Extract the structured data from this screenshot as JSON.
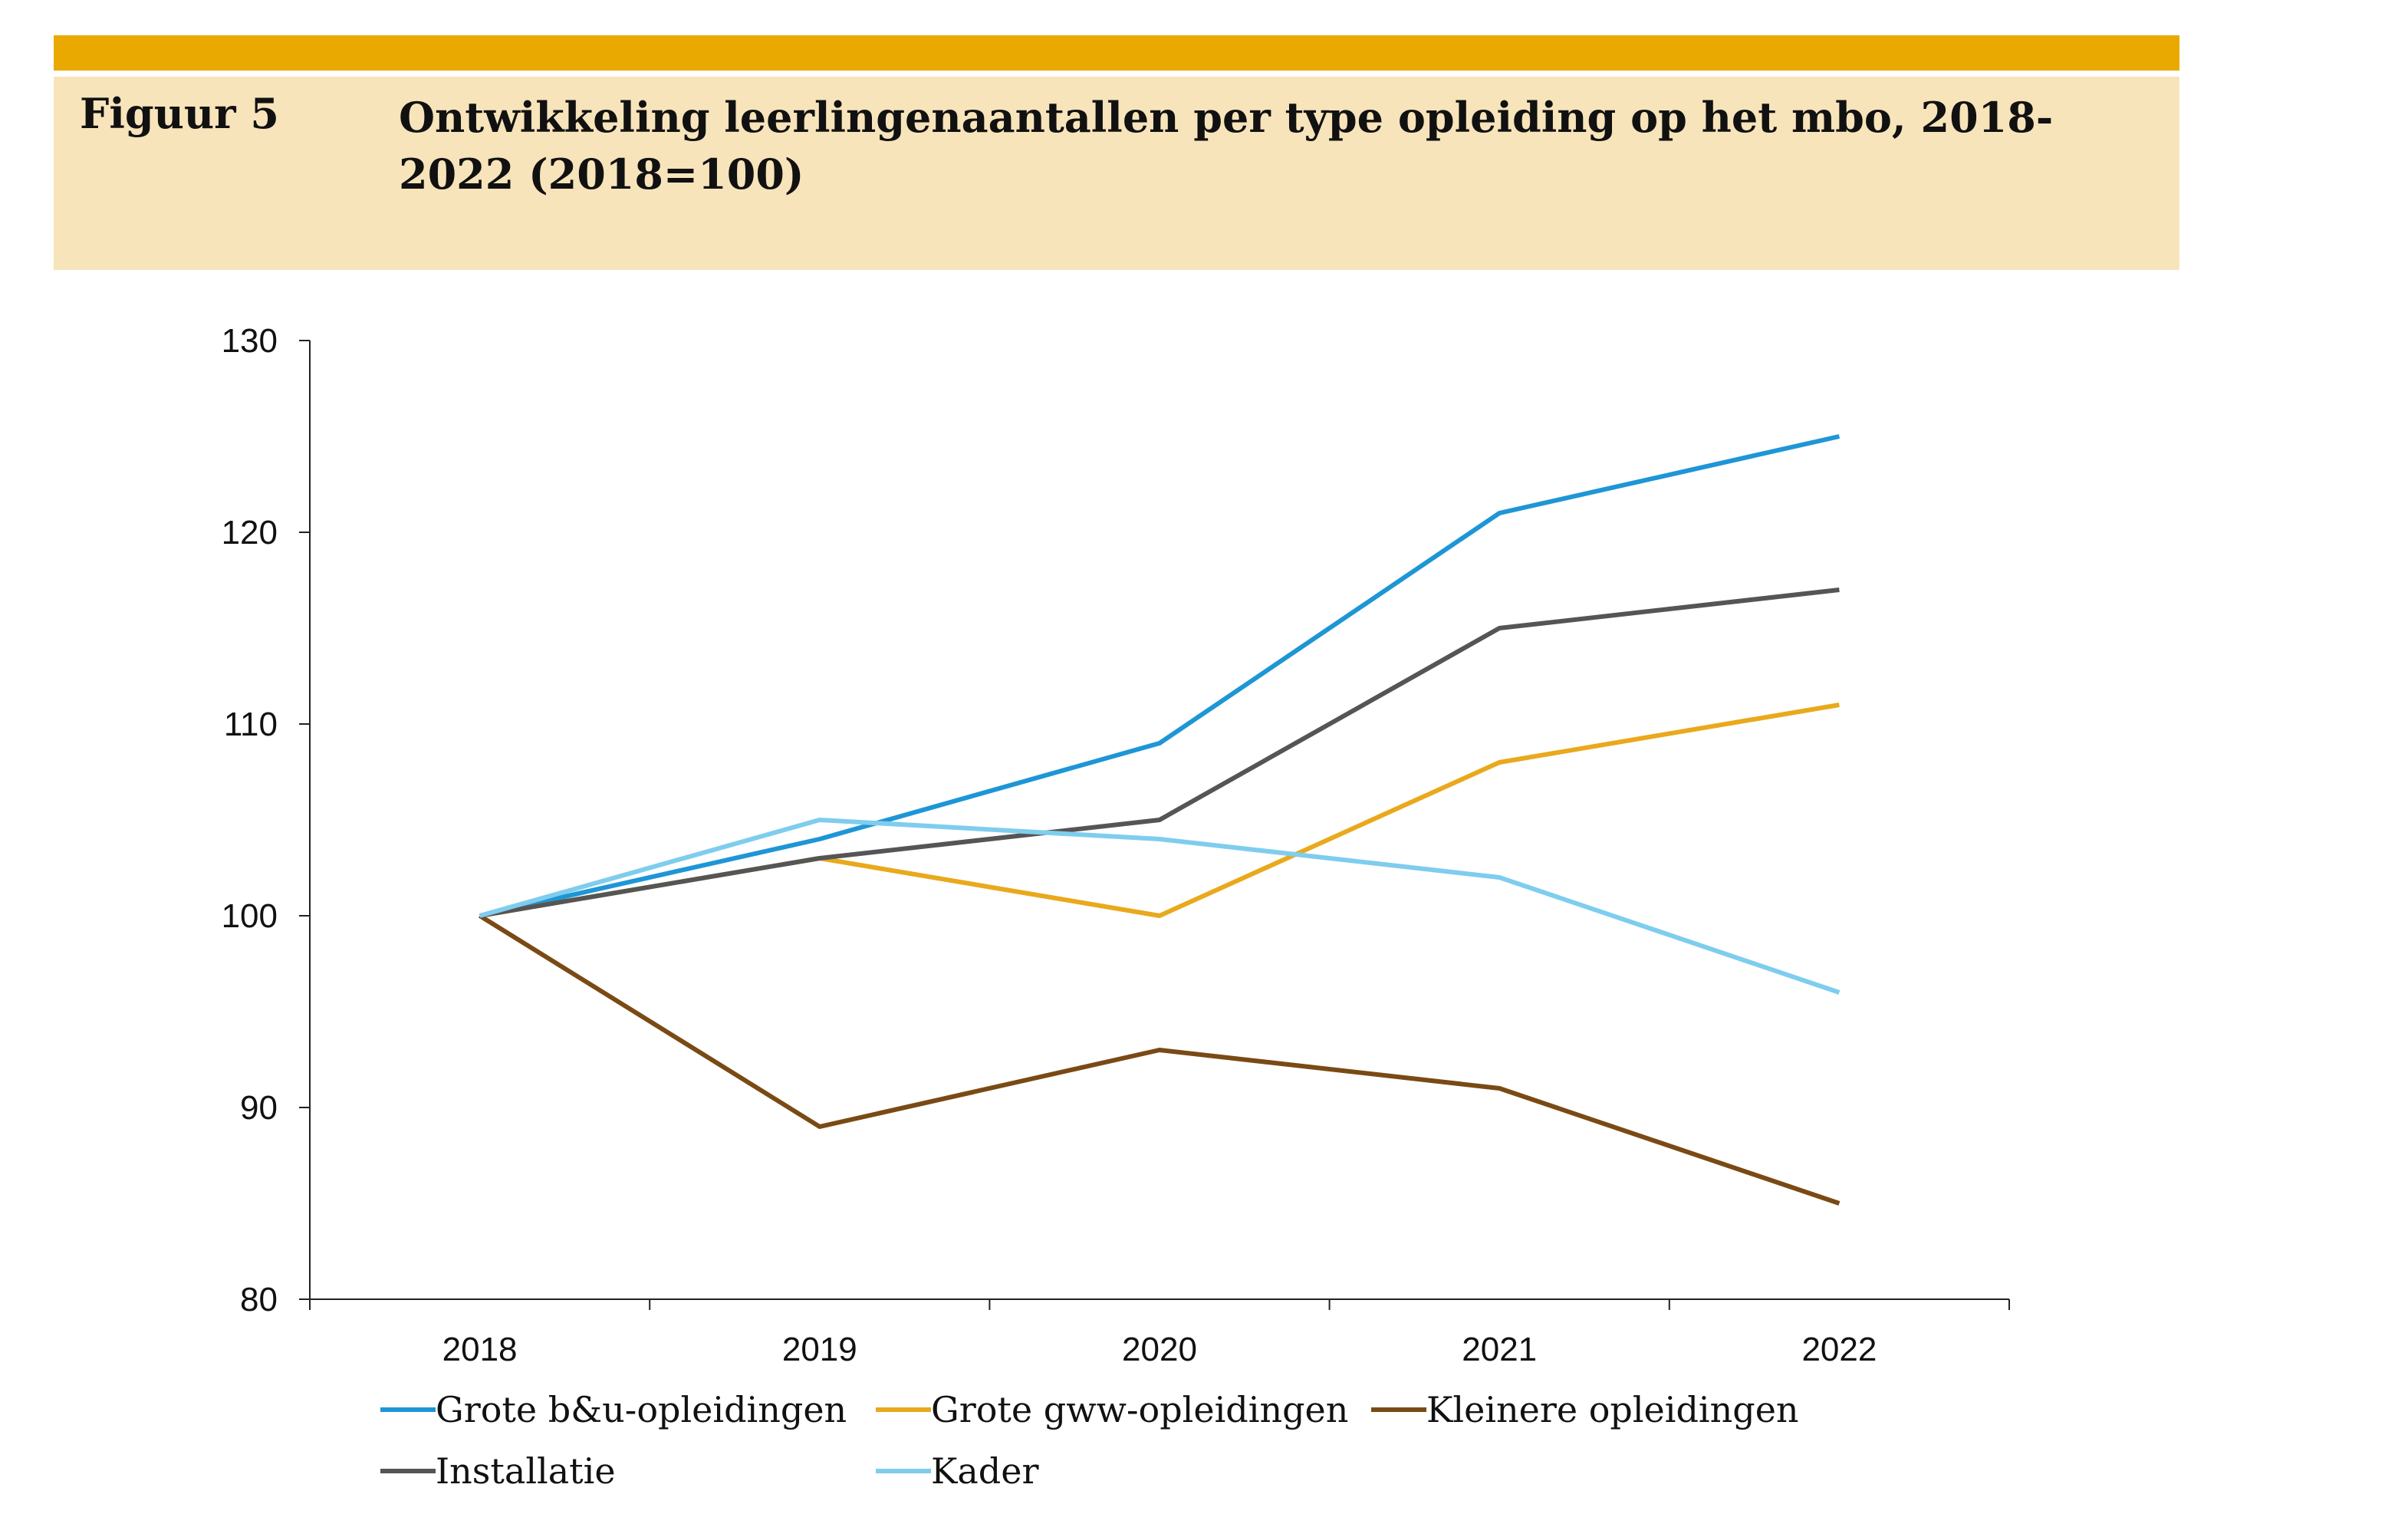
{
  "header": {
    "figure_label": "Figuur 5",
    "title": "Ontwikkeling leerlingenaantallen per type opleiding op het mbo, 2018-2022 (2018=100)",
    "bar_color": "#E9A900",
    "box_color": "#F8E4BA"
  },
  "chart_data": {
    "type": "line",
    "title": "Ontwikkeling leerlingenaantallen per type opleiding op het mbo, 2018-2022 (2018=100)",
    "x": [
      "2018",
      "2019",
      "2020",
      "2021",
      "2022"
    ],
    "ylim": [
      80,
      130
    ],
    "yticks": [
      80,
      90,
      100,
      110,
      120,
      130
    ],
    "grid": false,
    "legend_position": "bottom",
    "series": [
      {
        "name": "Grote b&u-opleidingen",
        "color": "#1E96D6",
        "values": [
          100,
          104,
          109,
          121,
          125
        ]
      },
      {
        "name": "Grote gww-opleidingen",
        "color": "#E9A91C",
        "values": [
          100,
          103,
          100,
          108,
          111
        ]
      },
      {
        "name": "Kleinere opleidingen",
        "color": "#7A4A14",
        "values": [
          100,
          89,
          93,
          91,
          85
        ]
      },
      {
        "name": "Installatie",
        "color": "#555555",
        "values": [
          100,
          103,
          105,
          115,
          117
        ]
      },
      {
        "name": "Kader",
        "color": "#7FCDEE",
        "values": [
          100,
          105,
          104,
          102,
          96
        ]
      }
    ]
  }
}
